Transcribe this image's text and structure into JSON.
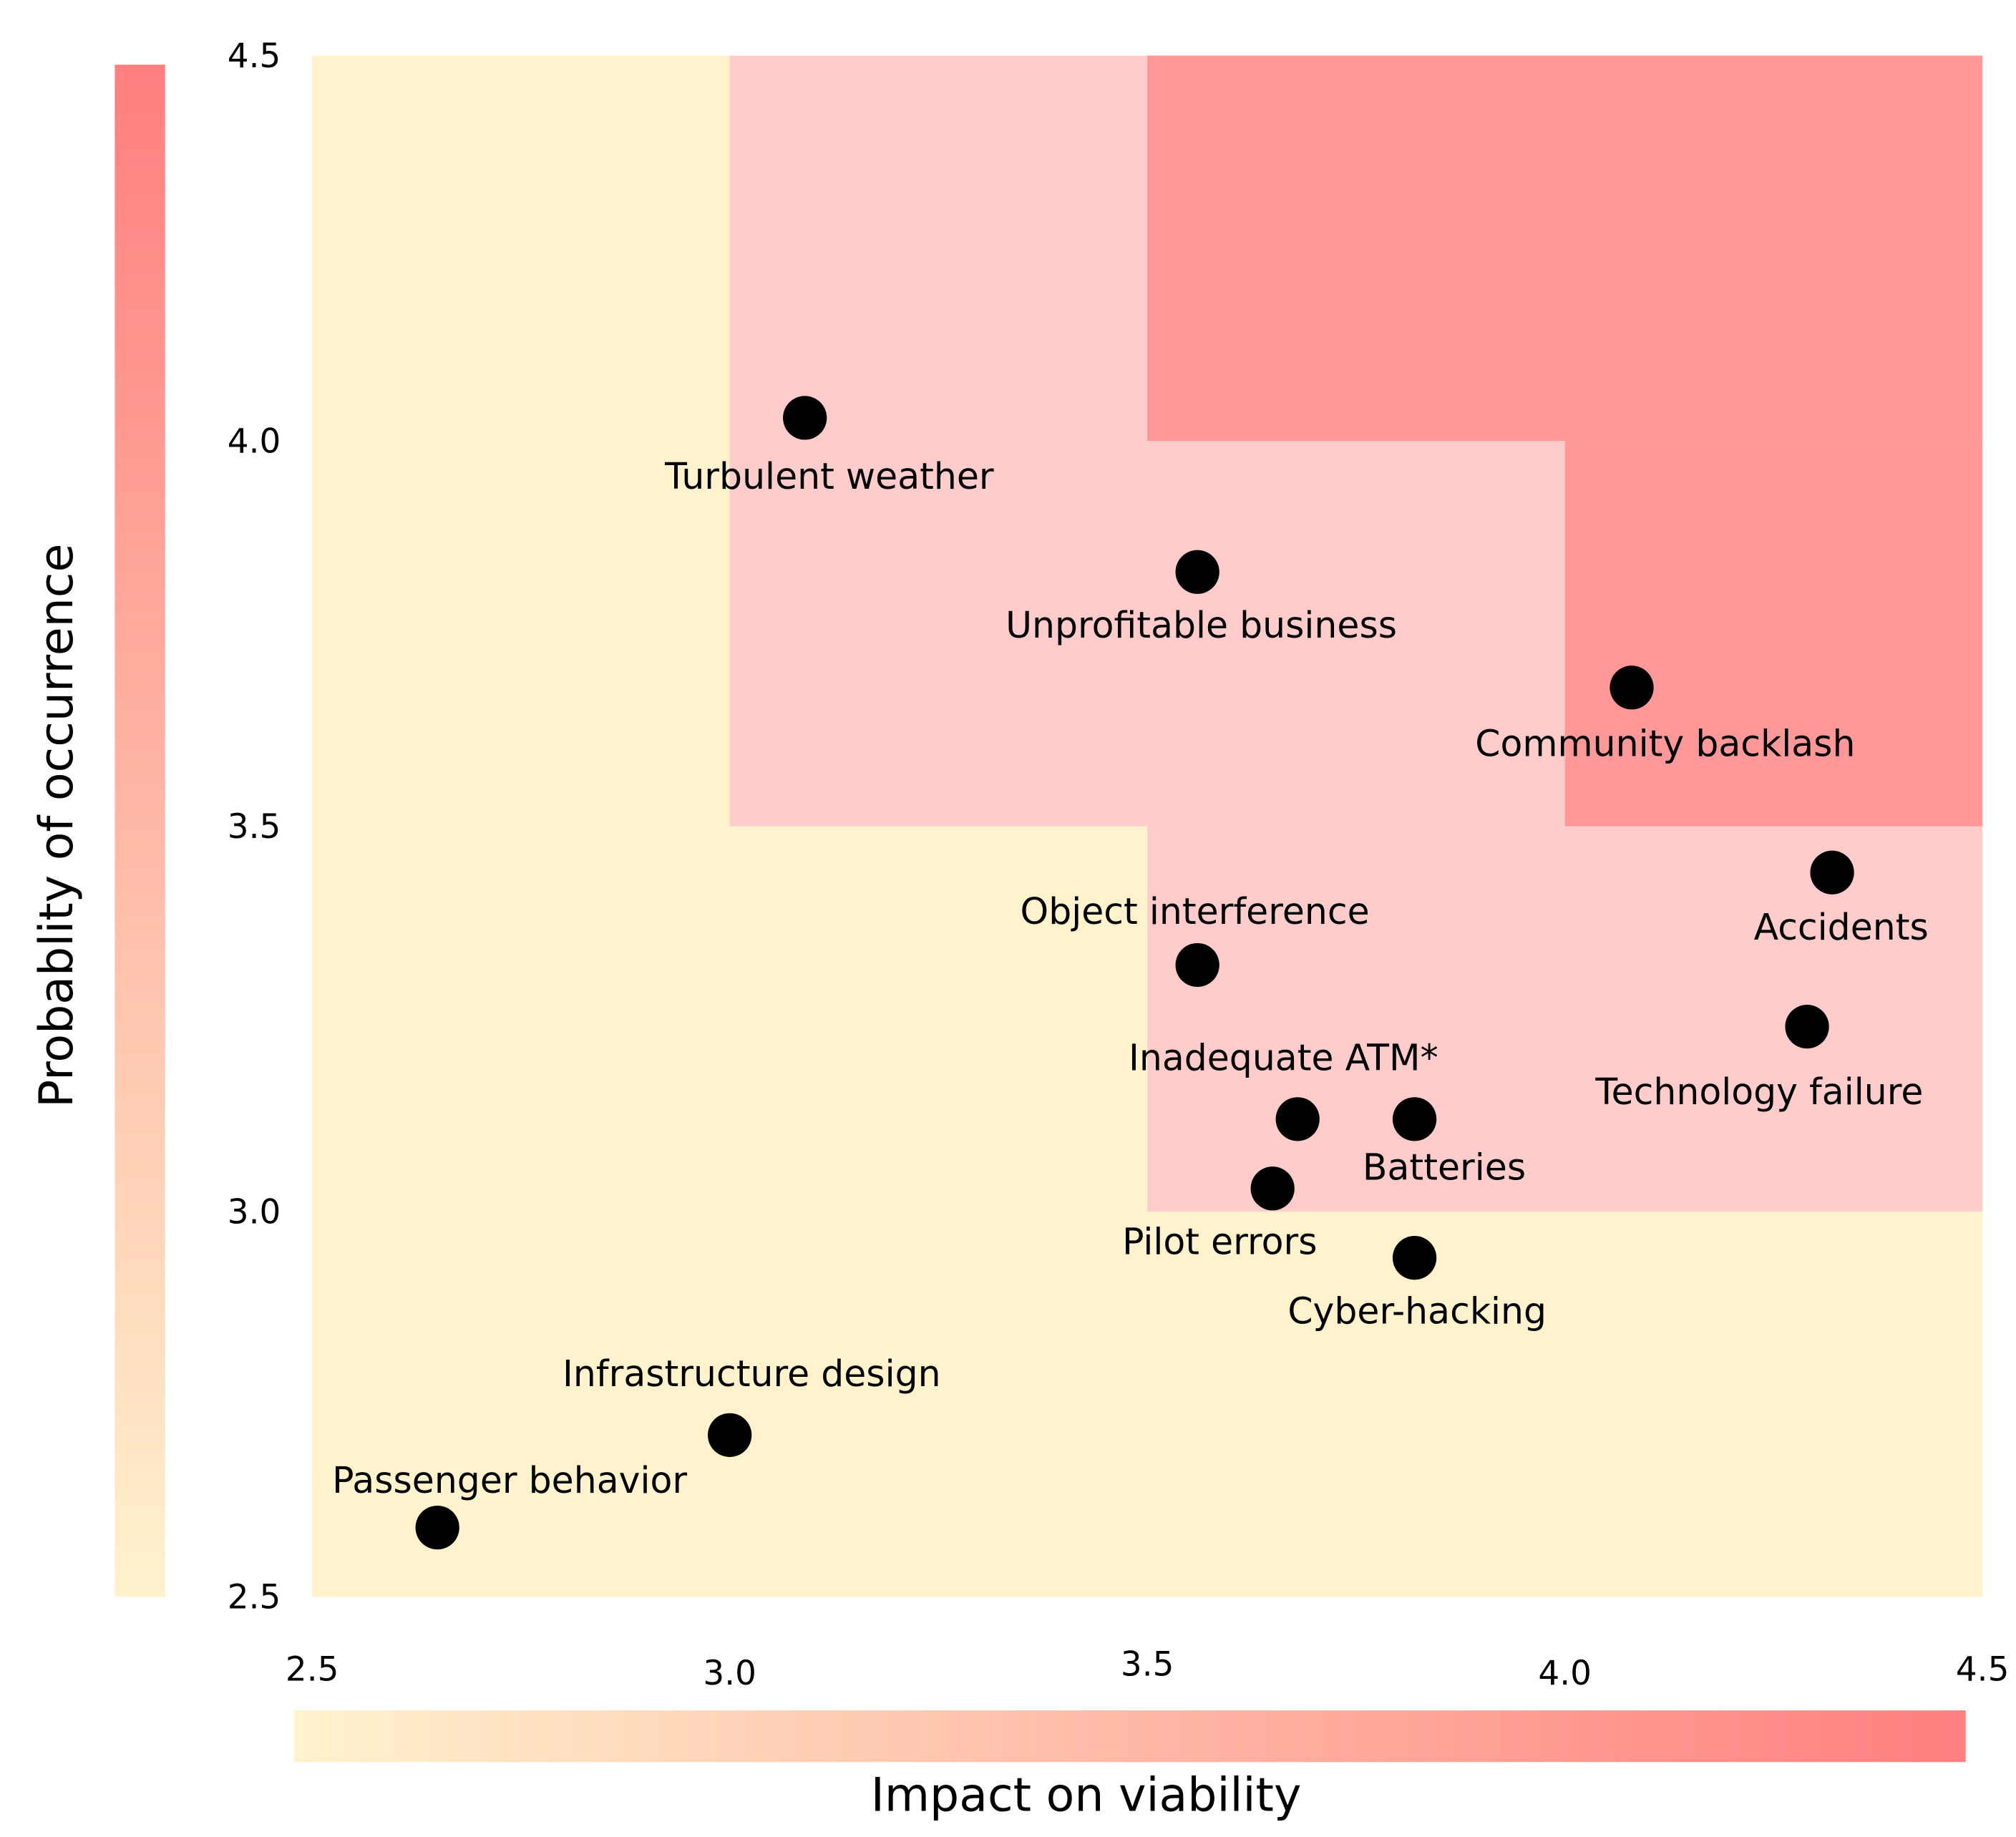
{
  "chart_data": {
    "type": "scatter",
    "title": "",
    "xlabel": "Impact on viability",
    "ylabel": "Probablity of occurrence",
    "xlim": [
      2.5,
      4.5
    ],
    "ylim": [
      2.5,
      4.5
    ],
    "x_ticks": [
      "2.5",
      "3.0",
      "3.5",
      "4.0",
      "4.5"
    ],
    "y_ticks": [
      "2.5",
      "3.0",
      "3.5",
      "4.0",
      "4.5"
    ],
    "grid": false,
    "colors": {
      "low": "#FFF2CC",
      "medium": "#FFCCCC",
      "high": "#FF9999",
      "colorbar_start": "#FFF2CC",
      "colorbar_end": "#FF7F7F",
      "point": "#000000"
    },
    "zones": [
      {
        "level": "low",
        "x": [
          2.5,
          4.5
        ],
        "y": [
          2.5,
          4.5
        ]
      },
      {
        "level": "medium",
        "x": [
          3.0,
          4.5
        ],
        "y": [
          3.5,
          4.5
        ]
      },
      {
        "level": "medium",
        "x": [
          3.5,
          4.5
        ],
        "y": [
          3.0,
          3.5
        ]
      },
      {
        "level": "high",
        "x": [
          3.5,
          4.5
        ],
        "y": [
          4.0,
          4.5
        ]
      },
      {
        "level": "high",
        "x": [
          4.0,
          4.5
        ],
        "y": [
          3.5,
          4.0
        ]
      }
    ],
    "points": [
      {
        "label": "Turbulent weather",
        "x": 3.09,
        "y": 4.03
      },
      {
        "label": "Unprofitable business",
        "x": 3.56,
        "y": 3.83
      },
      {
        "label": "Community backlash",
        "x": 4.08,
        "y": 3.68
      },
      {
        "label": "Accidents",
        "x": 4.32,
        "y": 3.44
      },
      {
        "label": "Technology failure",
        "x": 4.29,
        "y": 3.24
      },
      {
        "label": "Object interference",
        "x": 3.56,
        "y": 3.32
      },
      {
        "label": "Inadequate ATM*",
        "x": 3.68,
        "y": 3.12
      },
      {
        "label": "Batteries",
        "x": 3.82,
        "y": 3.12
      },
      {
        "label": "Pilot errors",
        "x": 3.65,
        "y": 3.03
      },
      {
        "label": "Cyber-hacking",
        "x": 3.82,
        "y": 2.94
      },
      {
        "label": "Infrastructure design",
        "x": 3.0,
        "y": 2.71
      },
      {
        "label": "Passenger behavior",
        "x": 2.65,
        "y": 2.59
      }
    ]
  }
}
